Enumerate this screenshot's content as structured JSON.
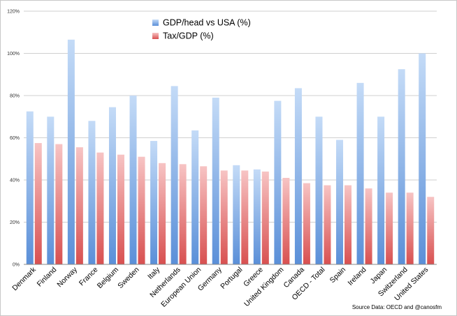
{
  "chart_data": {
    "type": "bar",
    "categories": [
      "Denmark",
      "Finland",
      "Norway",
      "France",
      "Belgium",
      "Sweden",
      "Italy",
      "Netherlands",
      "European Union",
      "Germany",
      "Portugal",
      "Greece",
      "United Kingdom",
      "Canada",
      "OECD - Total",
      "Spain",
      "Ireland",
      "Japan",
      "Switzerland",
      "United States"
    ],
    "series": [
      {
        "name": "GDP/head vs USA (%)",
        "color": "#6a9fe0",
        "values": [
          72.5,
          70,
          106.5,
          68,
          74.5,
          80,
          58.5,
          84.5,
          63.5,
          79,
          47,
          45,
          77.5,
          83.5,
          70,
          59,
          86,
          70,
          92.5,
          100
        ]
      },
      {
        "name": "Tax/GDP (%)",
        "color": "#e06262",
        "values": [
          57.5,
          57,
          55.5,
          53,
          52,
          51,
          48,
          47.5,
          46.5,
          44.5,
          44.5,
          44,
          41,
          38.5,
          37.5,
          37.5,
          36,
          34,
          34,
          32
        ]
      }
    ],
    "yticks": [
      "0%",
      "20%",
      "40%",
      "60%",
      "80%",
      "100%",
      "120%"
    ],
    "ylim": [
      0,
      120
    ],
    "grid": true,
    "legend_position": "top-center",
    "source_note": "Source Data: OECD and @canosfm"
  }
}
